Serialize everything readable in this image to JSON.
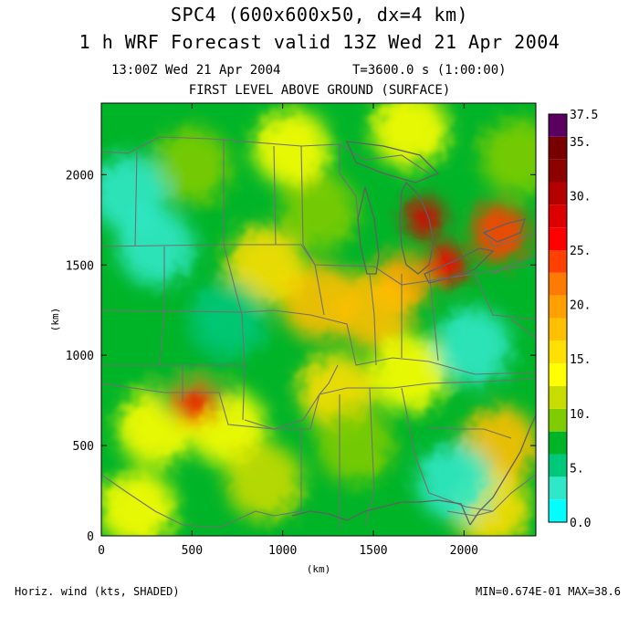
{
  "figure": {
    "title_line1": "SPC4 (600x600x50, dx=4 km)",
    "title_line2": "1 h WRF Forecast valid 13Z Wed 21 Apr 2004",
    "valid_time": "13:00Z Wed 21 Apr 2004",
    "model_time": "T=3600.0 s (1:00:00)",
    "level": "FIRST LEVEL ABOVE GROUND (SURFACE)",
    "field_label": "Horiz. wind (kts, SHADED)",
    "min_max": "MIN=0.674E-01 MAX=38.6"
  },
  "colorbar": {
    "labels": [
      "0.0",
      "5.",
      "10.",
      "15.",
      "20.",
      "25.",
      "30.",
      "35.",
      "37.5"
    ],
    "colors": [
      "#00ffff",
      "#30e8c8",
      "#00c87a",
      "#00b428",
      "#7fcc00",
      "#c8dc00",
      "#ffff00",
      "#ffe000",
      "#ffc000",
      "#ffa000",
      "#ff7a00",
      "#ff4000",
      "#ff0000",
      "#dc0000",
      "#b40000",
      "#8c0000",
      "#780000",
      "#5a0060"
    ]
  },
  "chart_data": {
    "type": "heatmap",
    "title": "SPC4 (600x600x50, dx=4 km)",
    "subtitle": "1 h WRF Forecast valid 13Z Wed 21 Apr 2004",
    "xlabel": "(km)",
    "ylabel": "(km)",
    "xlim": [
      0,
      2396
    ],
    "ylim": [
      0,
      2396
    ],
    "x_ticks": [
      0,
      500,
      1000,
      1500,
      2000
    ],
    "y_ticks": [
      0,
      500,
      1000,
      1500,
      2000
    ],
    "value_range": [
      0.0674,
      38.6
    ],
    "color_scale": {
      "min": 0,
      "max": 37.5,
      "step": 2.5
    },
    "features": [
      {
        "x": 1780,
        "y": 1760,
        "value": 33
      },
      {
        "x": 1900,
        "y": 1500,
        "value": 31
      },
      {
        "x": 2200,
        "y": 1680,
        "value": 28
      },
      {
        "x": 1650,
        "y": 1400,
        "value": 24
      },
      {
        "x": 1500,
        "y": 1250,
        "value": 20
      },
      {
        "x": 1200,
        "y": 1300,
        "value": 20
      },
      {
        "x": 900,
        "y": 1500,
        "value": 18
      },
      {
        "x": 1300,
        "y": 800,
        "value": 18
      },
      {
        "x": 1700,
        "y": 900,
        "value": 16
      },
      {
        "x": 700,
        "y": 600,
        "value": 16
      },
      {
        "x": 300,
        "y": 600,
        "value": 15
      },
      {
        "x": 200,
        "y": 150,
        "value": 15
      },
      {
        "x": 2200,
        "y": 500,
        "value": 20
      },
      {
        "x": 2150,
        "y": 150,
        "value": 18
      },
      {
        "x": 1200,
        "y": 1800,
        "value": 12
      },
      {
        "x": 1050,
        "y": 2150,
        "value": 15
      },
      {
        "x": 500,
        "y": 2050,
        "value": 12
      },
      {
        "x": 300,
        "y": 1600,
        "value": 4
      },
      {
        "x": 150,
        "y": 1900,
        "value": 4
      },
      {
        "x": 700,
        "y": 1200,
        "value": 6
      },
      {
        "x": 500,
        "y": 850,
        "value": 8
      },
      {
        "x": 520,
        "y": 730,
        "value": 30
      },
      {
        "x": 1950,
        "y": 300,
        "value": 3
      },
      {
        "x": 2050,
        "y": 1050,
        "value": 4
      },
      {
        "x": 1700,
        "y": 2250,
        "value": 16
      },
      {
        "x": 2300,
        "y": 2100,
        "value": 12
      },
      {
        "x": 1400,
        "y": 500,
        "value": 12
      },
      {
        "x": 900,
        "y": 300,
        "value": 14
      }
    ]
  }
}
